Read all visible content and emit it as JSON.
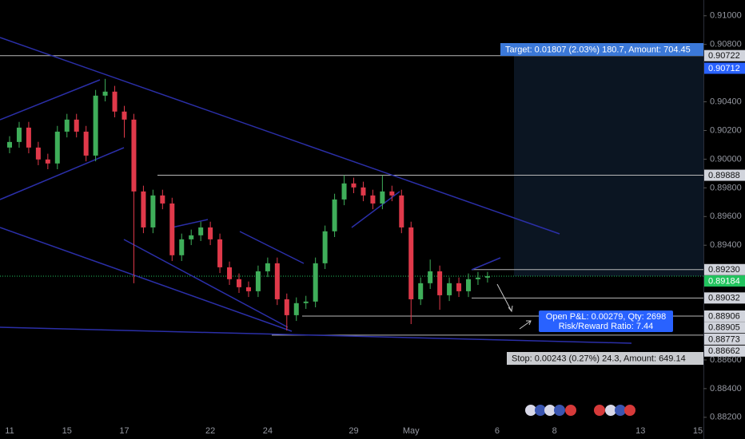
{
  "chart_data": {
    "type": "candlestick",
    "categories": [
      "11",
      null,
      null,
      null,
      null,
      null,
      "15",
      null,
      null,
      null,
      null,
      null,
      "17",
      null,
      null,
      null,
      null,
      null,
      null,
      null,
      null,
      "22",
      null,
      null,
      null,
      null,
      null,
      "24",
      null,
      null,
      null,
      null,
      null,
      null,
      null,
      null,
      "29",
      null,
      null,
      null,
      null,
      null,
      "May",
      null,
      null,
      null,
      null,
      null,
      null,
      null,
      null,
      "6",
      null,
      null,
      null,
      null,
      null,
      "8",
      null,
      null,
      null,
      null,
      null,
      null,
      null,
      null,
      "13",
      null,
      null,
      null,
      null,
      null,
      "15"
    ],
    "open": [
      0.90081,
      0.9012,
      0.9022,
      0.90081,
      0.89998,
      0.8997,
      0.90192,
      0.90276,
      0.90192,
      0.90025,
      0.90443,
      0.90471,
      0.90332,
      0.90276,
      0.89775,
      0.89524,
      0.89747,
      0.89691,
      0.8933,
      0.89441,
      0.89469,
      0.89524,
      0.89441,
      0.89246,
      0.89163,
      0.89107,
      0.89079,
      0.89218,
      0.89274,
      0.89023,
      0.88912,
      0.88996,
      0.89007,
      0.89274,
      0.89497,
      0.89719,
      0.89831,
      0.89803,
      0.89747,
      0.89691,
      0.89775,
      0.89747,
      0.89524,
      0.89023,
      0.89135,
      0.89218,
      0.89051,
      0.89135,
      0.89079,
      0.89163,
      0.89174,
      null,
      null,
      null,
      null,
      null,
      null,
      null,
      null,
      null,
      null,
      null,
      null,
      null,
      null,
      null,
      null,
      null,
      null,
      null,
      null,
      null,
      null
    ],
    "high": [
      0.9016,
      0.9026,
      0.9026,
      0.90121,
      0.90038,
      0.90232,
      0.90316,
      0.90316,
      0.90232,
      0.90483,
      0.9056,
      0.90511,
      0.90372,
      0.90316,
      0.89815,
      0.89787,
      0.89787,
      0.89731,
      0.89481,
      0.89509,
      0.89564,
      0.89564,
      0.89481,
      0.89286,
      0.89203,
      0.89147,
      0.89258,
      0.89314,
      0.89314,
      0.89063,
      0.89036,
      0.89047,
      0.89314,
      0.89537,
      0.89759,
      0.89888,
      0.89871,
      0.89843,
      0.89787,
      0.89888,
      0.89815,
      0.89787,
      0.89564,
      0.89175,
      0.893,
      0.89258,
      0.89175,
      0.89175,
      0.89203,
      0.89214,
      0.89214,
      null,
      null,
      null,
      null,
      null,
      null,
      null,
      null,
      null,
      null,
      null,
      null,
      null,
      null,
      null,
      null,
      null,
      null,
      null,
      null,
      null,
      null
    ],
    "low": [
      0.90041,
      0.9008,
      0.90041,
      0.89958,
      0.8993,
      0.8993,
      0.90152,
      0.90152,
      0.89985,
      0.89985,
      0.90403,
      0.90292,
      0.9015,
      0.89135,
      0.89484,
      0.89484,
      0.89651,
      0.8929,
      0.8929,
      0.89401,
      0.89429,
      0.89401,
      0.89206,
      0.89123,
      0.89067,
      0.89039,
      0.89039,
      0.89178,
      0.88983,
      0.88805,
      0.88872,
      0.88956,
      0.88967,
      0.89234,
      0.89457,
      0.89679,
      0.89763,
      0.89707,
      0.89651,
      0.89651,
      0.89707,
      0.89484,
      0.8885,
      0.88983,
      0.89095,
      0.8895,
      0.89011,
      0.89039,
      0.89039,
      0.89123,
      0.8914,
      null,
      null,
      null,
      null,
      null,
      null,
      null,
      null,
      null,
      null,
      null,
      null,
      null,
      null,
      null,
      null,
      null,
      null,
      null,
      null,
      null,
      null
    ],
    "close": [
      0.9012,
      0.9022,
      0.90081,
      0.89998,
      0.8997,
      0.90192,
      0.90276,
      0.90192,
      0.90025,
      0.90443,
      0.90471,
      0.90332,
      0.90276,
      0.89775,
      0.89524,
      0.89747,
      0.89691,
      0.8933,
      0.89441,
      0.89469,
      0.89524,
      0.89441,
      0.89246,
      0.89163,
      0.89107,
      0.89079,
      0.89218,
      0.89274,
      0.89023,
      0.88912,
      0.88996,
      0.89007,
      0.89274,
      0.89497,
      0.89719,
      0.89831,
      0.89803,
      0.89747,
      0.89691,
      0.89775,
      0.89747,
      0.89524,
      0.89023,
      0.89135,
      0.89218,
      0.89051,
      0.89135,
      0.89079,
      0.89163,
      0.89174,
      0.89184,
      null,
      null,
      null,
      null,
      null,
      null,
      null,
      null,
      null,
      null,
      null,
      null,
      null,
      null,
      null,
      null,
      null,
      null,
      null,
      null,
      null,
      null
    ],
    "up_color": "#3fae5a",
    "down_color": "#e0394a",
    "ylim": [
      0.8816,
      0.9111
    ],
    "yticks": [
      {
        "value": 0.91,
        "label": "0.91000"
      },
      {
        "value": 0.908,
        "label": "0.90800"
      },
      {
        "value": 0.904,
        "label": "0.90400"
      },
      {
        "value": 0.902,
        "label": "0.90200"
      },
      {
        "value": 0.9,
        "label": "0.90000"
      },
      {
        "value": 0.898,
        "label": "0.89800"
      },
      {
        "value": 0.896,
        "label": "0.89600"
      },
      {
        "value": 0.894,
        "label": "0.89400"
      },
      {
        "value": 0.886,
        "label": "0.88600"
      },
      {
        "value": 0.884,
        "label": "0.88400"
      },
      {
        "value": 0.882,
        "label": "0.88200"
      }
    ],
    "levels": [
      {
        "value": 0.90722,
        "label": "0.90722",
        "color": "#d1d4dc"
      },
      {
        "value": 0.90712,
        "label": "0.90712",
        "color": "#2962ff"
      },
      {
        "value": 0.89888,
        "label": "0.89888",
        "color": "#d1d4dc"
      },
      {
        "value": 0.8923,
        "label": "0.89230",
        "color": "#d1d4dc"
      },
      {
        "value": 0.89184,
        "label": "0.89184",
        "color": "#22c35e"
      },
      {
        "value": 0.89032,
        "label": "0.89032",
        "color": "#d1d4dc"
      },
      {
        "value": 0.88906,
        "label": "0.88906",
        "color": "#d1d4dc"
      },
      {
        "value": 0.88905,
        "label": "0.88905",
        "color": "#d1d4dc"
      },
      {
        "value": 0.88773,
        "label": "0.88773",
        "color": "#d1d4dc"
      },
      {
        "value": 0.88662,
        "label": "0.88662",
        "color": "#d1d4dc"
      }
    ],
    "annotations": {
      "target": "Target: 0.01807 (2.03%) 180.7, Amount: 704.45",
      "pnl": "Open P&L: 0.00279, Qty: 2698",
      "ratio": "Risk/Reward Ratio: 7.44",
      "stop": "Stop: 0.00243 (0.27%) 24.3, Amount: 649.14"
    }
  }
}
